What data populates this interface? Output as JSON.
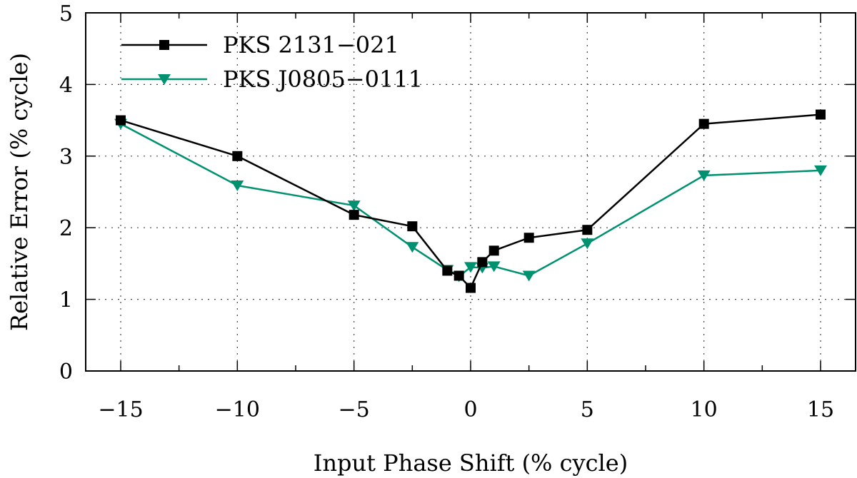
{
  "chart_data": {
    "type": "line",
    "title": "",
    "xlabel": "Input Phase Shift (% cycle)",
    "ylabel": "Relative Error (% cycle)",
    "xlim": [
      -16.5,
      16.5
    ],
    "ylim": [
      0,
      5
    ],
    "xticks": [
      -15,
      -10,
      -5,
      0,
      5,
      10,
      15
    ],
    "xtick_labels": [
      "−15",
      "−10",
      "−5",
      "0",
      "5",
      "10",
      "15"
    ],
    "xminor": [
      -12.5,
      -7.5,
      -2.5,
      2.5,
      7.5,
      12.5
    ],
    "yticks": [
      0,
      1,
      2,
      3,
      4,
      5
    ],
    "ytick_labels": [
      "0",
      "1",
      "2",
      "3",
      "4",
      "5"
    ],
    "grid": true,
    "legend_position": "top-left",
    "series": [
      {
        "name": "PKS 2131−021",
        "color": "#000000",
        "marker": "square",
        "x": [
          -15,
          -10,
          -5,
          -2.5,
          -1,
          -0.5,
          0,
          0.5,
          1,
          2.5,
          5,
          10,
          15
        ],
        "y": [
          3.5,
          3.0,
          2.18,
          2.02,
          1.4,
          1.33,
          1.16,
          1.52,
          1.68,
          1.86,
          1.97,
          3.45,
          3.58
        ]
      },
      {
        "name": "PKS J0805−0111",
        "color": "#009270",
        "marker": "triangle-down",
        "x": [
          -15,
          -10,
          -5,
          -2.5,
          -1,
          -0.5,
          0,
          0.5,
          1,
          2.5,
          5,
          10,
          15
        ],
        "y": [
          3.45,
          2.59,
          2.31,
          1.73,
          1.41,
          1.32,
          1.45,
          1.44,
          1.46,
          1.33,
          1.78,
          2.73,
          2.8
        ]
      }
    ]
  }
}
